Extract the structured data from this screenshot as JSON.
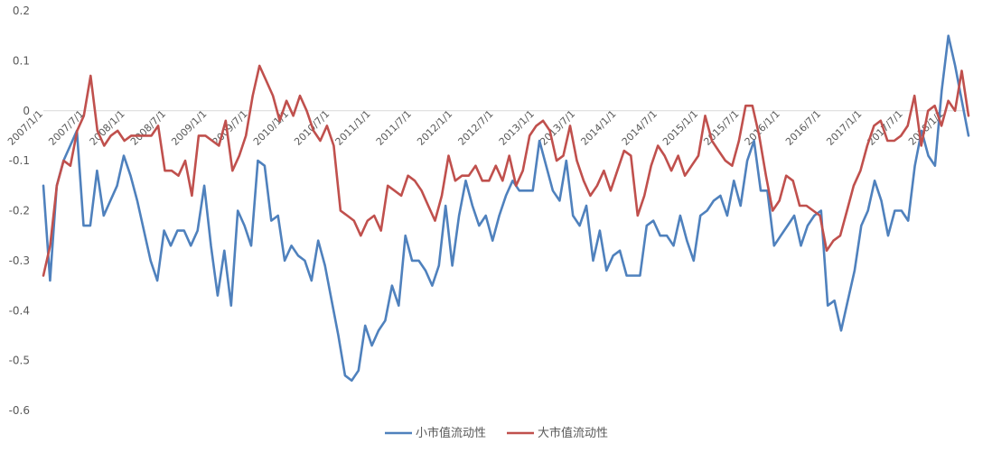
{
  "chart_data": {
    "type": "line",
    "title": "",
    "xlabel": "",
    "ylabel": "",
    "ylim": [
      -0.6,
      0.2
    ],
    "y_ticks": [
      "0.2",
      "0.1",
      "0",
      "-0.1",
      "-0.2",
      "-0.3",
      "-0.4",
      "-0.5",
      "-0.6"
    ],
    "x_tick_labels": [
      "2007/1/1",
      "2007/7/1",
      "2008/1/1",
      "2008/7/1",
      "2009/1/1",
      "2009/7/1",
      "2010/1/1",
      "2010/7/1",
      "2011/1/1",
      "2011/7/1",
      "2012/1/1",
      "2012/7/1",
      "2013/1/1",
      "2013/7/1",
      "2014/1/1",
      "2014/7/1",
      "2015/1/1",
      "2015/7/1",
      "2016/1/1",
      "2016/7/1",
      "2017/1/1",
      "2017/7/1",
      "2018/1/1"
    ],
    "legend_position": "bottom",
    "grid": false,
    "series": [
      {
        "name": "小市值流动性",
        "color": "#4f81bd",
        "values": [
          -0.15,
          -0.34,
          -0.15,
          -0.1,
          -0.07,
          -0.04,
          -0.23,
          -0.23,
          -0.12,
          -0.21,
          -0.18,
          -0.15,
          -0.09,
          -0.13,
          -0.18,
          -0.24,
          -0.3,
          -0.34,
          -0.24,
          -0.27,
          -0.24,
          -0.24,
          -0.27,
          -0.24,
          -0.15,
          -0.27,
          -0.37,
          -0.28,
          -0.39,
          -0.2,
          -0.23,
          -0.27,
          -0.1,
          -0.11,
          -0.22,
          -0.21,
          -0.3,
          -0.27,
          -0.29,
          -0.3,
          -0.34,
          -0.26,
          -0.31,
          -0.38,
          -0.45,
          -0.53,
          -0.54,
          -0.52,
          -0.43,
          -0.47,
          -0.44,
          -0.42,
          -0.35,
          -0.39,
          -0.25,
          -0.3,
          -0.3,
          -0.32,
          -0.35,
          -0.31,
          -0.19,
          -0.31,
          -0.21,
          -0.14,
          -0.19,
          -0.23,
          -0.21,
          -0.26,
          -0.21,
          -0.17,
          -0.14,
          -0.16,
          -0.16,
          -0.16,
          -0.06,
          -0.11,
          -0.16,
          -0.18,
          -0.1,
          -0.21,
          -0.23,
          -0.19,
          -0.3,
          -0.24,
          -0.32,
          -0.29,
          -0.28,
          -0.33,
          -0.33,
          -0.33,
          -0.23,
          -0.22,
          -0.25,
          -0.25,
          -0.27,
          -0.21,
          -0.26,
          -0.3,
          -0.21,
          -0.2,
          -0.18,
          -0.17,
          -0.21,
          -0.14,
          -0.19,
          -0.1,
          -0.06,
          -0.16,
          -0.16,
          -0.27,
          -0.25,
          -0.23,
          -0.21,
          -0.27,
          -0.23,
          -0.21,
          -0.2,
          -0.39,
          -0.38,
          -0.44,
          -0.38,
          -0.32,
          -0.23,
          -0.2,
          -0.14,
          -0.18,
          -0.25,
          -0.2,
          -0.2,
          -0.22,
          -0.11,
          -0.04,
          -0.09,
          -0.11,
          0.04,
          0.15,
          0.09,
          0.02,
          -0.05
        ]
      },
      {
        "name": "大市值流动性",
        "color": "#c0504d",
        "values": [
          -0.33,
          -0.27,
          -0.15,
          -0.1,
          -0.11,
          -0.04,
          -0.01,
          0.07,
          -0.04,
          -0.07,
          -0.05,
          -0.04,
          -0.06,
          -0.05,
          -0.05,
          -0.05,
          -0.05,
          -0.03,
          -0.12,
          -0.12,
          -0.13,
          -0.1,
          -0.17,
          -0.05,
          -0.05,
          -0.06,
          -0.07,
          -0.02,
          -0.12,
          -0.09,
          -0.05,
          0.03,
          0.09,
          0.06,
          0.03,
          -0.02,
          0.02,
          -0.01,
          0.03,
          0.0,
          -0.04,
          -0.06,
          -0.03,
          -0.07,
          -0.2,
          -0.21,
          -0.22,
          -0.25,
          -0.22,
          -0.21,
          -0.24,
          -0.15,
          -0.16,
          -0.17,
          -0.13,
          -0.14,
          -0.16,
          -0.19,
          -0.22,
          -0.17,
          -0.09,
          -0.14,
          -0.13,
          -0.13,
          -0.11,
          -0.14,
          -0.14,
          -0.11,
          -0.14,
          -0.09,
          -0.15,
          -0.12,
          -0.05,
          -0.03,
          -0.02,
          -0.04,
          -0.1,
          -0.09,
          -0.03,
          -0.1,
          -0.14,
          -0.17,
          -0.15,
          -0.12,
          -0.16,
          -0.12,
          -0.08,
          -0.09,
          -0.21,
          -0.17,
          -0.11,
          -0.07,
          -0.09,
          -0.12,
          -0.09,
          -0.13,
          -0.11,
          -0.09,
          -0.01,
          -0.06,
          -0.08,
          -0.1,
          -0.11,
          -0.06,
          0.01,
          0.01,
          -0.05,
          -0.13,
          -0.2,
          -0.18,
          -0.13,
          -0.14,
          -0.19,
          -0.19,
          -0.2,
          -0.21,
          -0.28,
          -0.26,
          -0.25,
          -0.2,
          -0.15,
          -0.12,
          -0.07,
          -0.03,
          -0.02,
          -0.06,
          -0.06,
          -0.05,
          -0.03,
          0.03,
          -0.07,
          0.0,
          0.01,
          -0.03,
          0.02,
          0.0,
          0.08,
          -0.01
        ]
      }
    ]
  }
}
